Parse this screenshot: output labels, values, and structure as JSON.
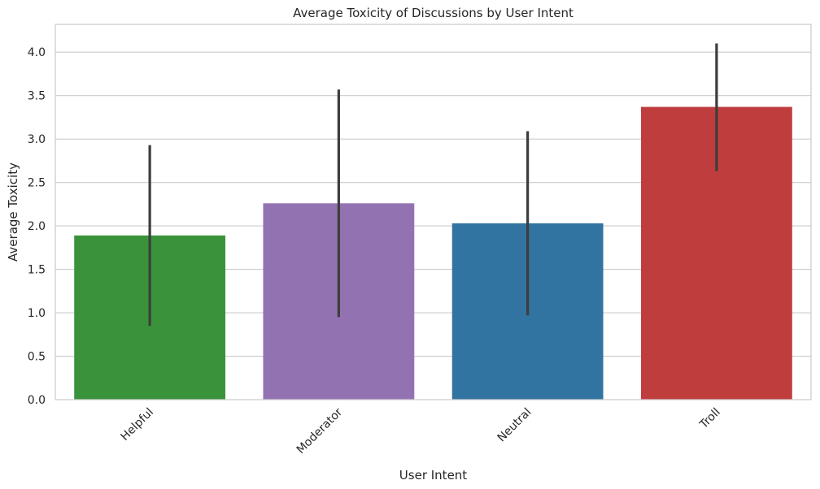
{
  "chart_data": {
    "type": "bar",
    "title": "Average Toxicity of Discussions by User Intent",
    "xlabel": "User Intent",
    "ylabel": "Average Toxicity",
    "categories": [
      "Helpful",
      "Moderator",
      "Neutral",
      "Troll"
    ],
    "values": [
      1.89,
      2.26,
      2.03,
      3.37
    ],
    "error_low": [
      0.85,
      0.95,
      0.97,
      2.63
    ],
    "error_high": [
      2.93,
      3.57,
      3.09,
      4.1
    ],
    "colors": [
      "#3a923a",
      "#9372b2",
      "#3274a1",
      "#c03d3e"
    ],
    "ylim": [
      0,
      4.32
    ],
    "yticks": [
      0.0,
      0.5,
      1.0,
      1.5,
      2.0,
      2.5,
      3.0,
      3.5,
      4.0
    ],
    "ytick_labels": [
      "0.0",
      "0.5",
      "1.0",
      "1.5",
      "2.0",
      "2.5",
      "3.0",
      "3.5",
      "4.0"
    ],
    "grid": true,
    "xtick_rotation": 45
  }
}
